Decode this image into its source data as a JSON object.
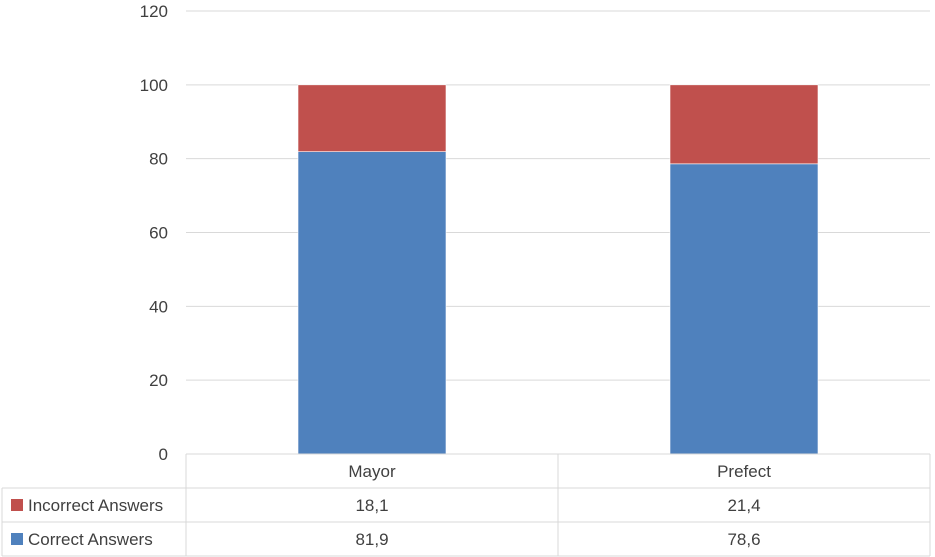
{
  "chart_data": {
    "type": "bar",
    "stacked": true,
    "categories": [
      "Mayor",
      "Prefect"
    ],
    "series": [
      {
        "name": "Correct Answers",
        "values": [
          81.9,
          78.6
        ],
        "value_labels": [
          "81,9",
          "78,6"
        ],
        "color": "#4F81BD"
      },
      {
        "name": "Incorrect Answers",
        "values": [
          18.1,
          21.4
        ],
        "value_labels": [
          "18,1",
          "21,4"
        ],
        "color": "#C0504D"
      }
    ],
    "ylim": [
      0,
      120
    ],
    "yticks": [
      0,
      20,
      40,
      60,
      80,
      100,
      120
    ],
    "grid": true,
    "legend": "data-table",
    "data_table": true
  }
}
